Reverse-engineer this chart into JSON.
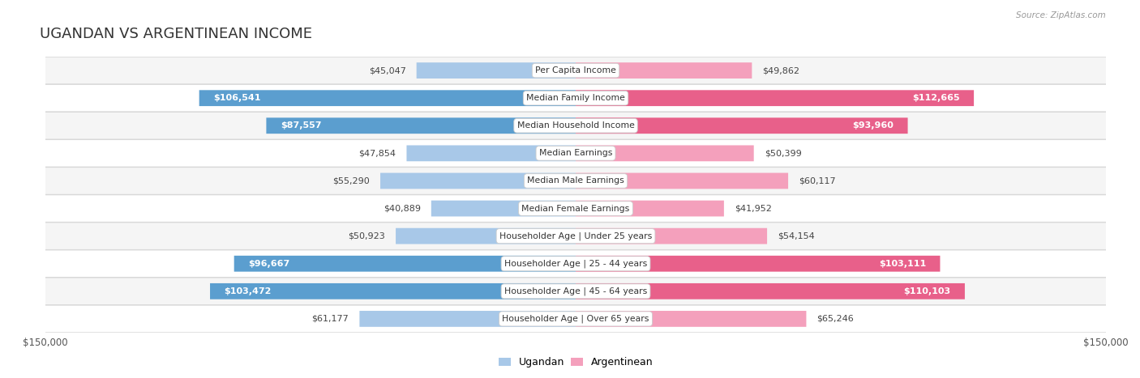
{
  "title": "UGANDAN VS ARGENTINEAN INCOME",
  "source": "Source: ZipAtlas.com",
  "categories": [
    "Per Capita Income",
    "Median Family Income",
    "Median Household Income",
    "Median Earnings",
    "Median Male Earnings",
    "Median Female Earnings",
    "Householder Age | Under 25 years",
    "Householder Age | 25 - 44 years",
    "Householder Age | 45 - 64 years",
    "Householder Age | Over 65 years"
  ],
  "ugandan_values": [
    45047,
    106541,
    87557,
    47854,
    55290,
    40889,
    50923,
    96667,
    103472,
    61177
  ],
  "argentinean_values": [
    49862,
    112665,
    93960,
    50399,
    60117,
    41952,
    54154,
    103111,
    110103,
    65246
  ],
  "ugandan_labels": [
    "$45,047",
    "$106,541",
    "$87,557",
    "$47,854",
    "$55,290",
    "$40,889",
    "$50,923",
    "$96,667",
    "$103,472",
    "$61,177"
  ],
  "argentinean_labels": [
    "$49,862",
    "$112,665",
    "$93,960",
    "$50,399",
    "$60,117",
    "$41,952",
    "$54,154",
    "$103,111",
    "$110,103",
    "$65,246"
  ],
  "ugandan_color_light": "#a8c8e8",
  "ugandan_color_dark": "#5b9ecf",
  "argentinean_color_light": "#f4a0bc",
  "argentinean_color_dark": "#e8608a",
  "strong_threshold": 80000,
  "max_value": 150000,
  "background_color": "#ffffff",
  "row_bg_even": "#f5f5f5",
  "row_bg_odd": "#ffffff",
  "bar_height": 0.58,
  "title_fontsize": 13,
  "label_fontsize": 8,
  "cat_fontsize": 7.8,
  "inside_label_threshold": 75000
}
